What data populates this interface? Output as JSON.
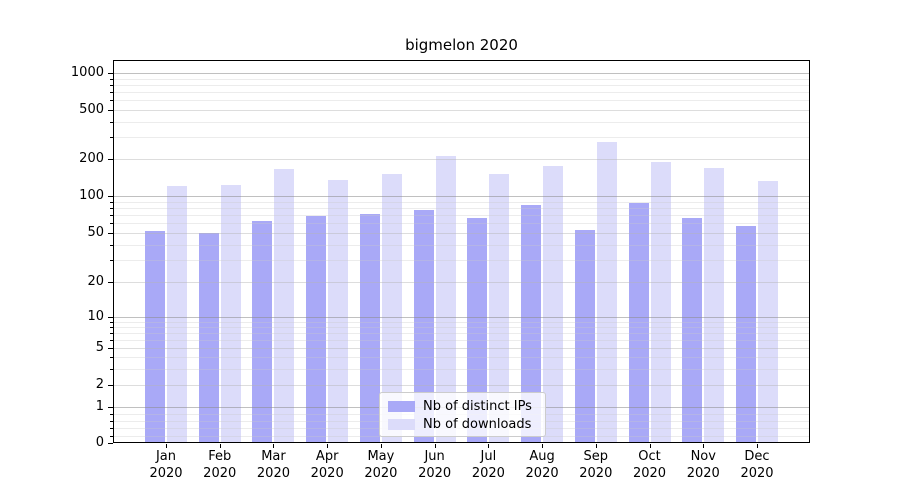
{
  "title": "bigmelon 2020",
  "chart_data": {
    "type": "bar",
    "title": "bigmelon 2020",
    "categories": [
      "Jan",
      "Feb",
      "Mar",
      "Apr",
      "May",
      "Jun",
      "Jul",
      "Aug",
      "Sep",
      "Oct",
      "Nov",
      "Dec"
    ],
    "category_year": "2020",
    "series": [
      {
        "name": "Nb of distinct IPs",
        "color": "#a9a9f7",
        "values": [
          52,
          50,
          62,
          68,
          71,
          77,
          66,
          85,
          53,
          88,
          66,
          57
        ]
      },
      {
        "name": "Nb of downloads",
        "color": "#dcdcfa",
        "values": [
          121,
          123,
          167,
          135,
          152,
          213,
          152,
          176,
          275,
          190,
          168,
          133
        ]
      }
    ],
    "xlabel": "",
    "ylabel": "",
    "yscale": "symlog",
    "y_ticks": [
      0,
      1,
      2,
      5,
      10,
      20,
      50,
      100,
      200,
      500,
      1000
    ],
    "ylim": [
      0,
      1280
    ],
    "grid": true,
    "legend_position": "lower center"
  },
  "colors": {
    "background": "#ffffff",
    "axis": "#000000",
    "major_grid": "#c4c4c4",
    "minor_grid": "#ebebeb",
    "legend_border": "#cccccc"
  }
}
